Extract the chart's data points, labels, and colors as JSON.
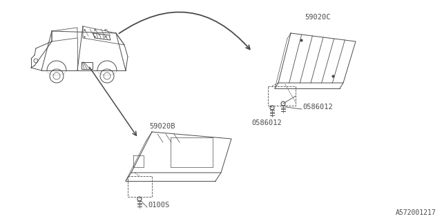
{
  "bg_color": "#ffffff",
  "line_color": "#4a4a4a",
  "title_diagram_id": "A572001217",
  "labels": {
    "part_59020C": "59020C",
    "part_59020B": "59020B",
    "bolt_0586012_1": "0586012",
    "bolt_0586012_2": "0586012",
    "bolt_0100S": "0100S"
  },
  "font_size_label": 7.5,
  "font_size_id": 7
}
